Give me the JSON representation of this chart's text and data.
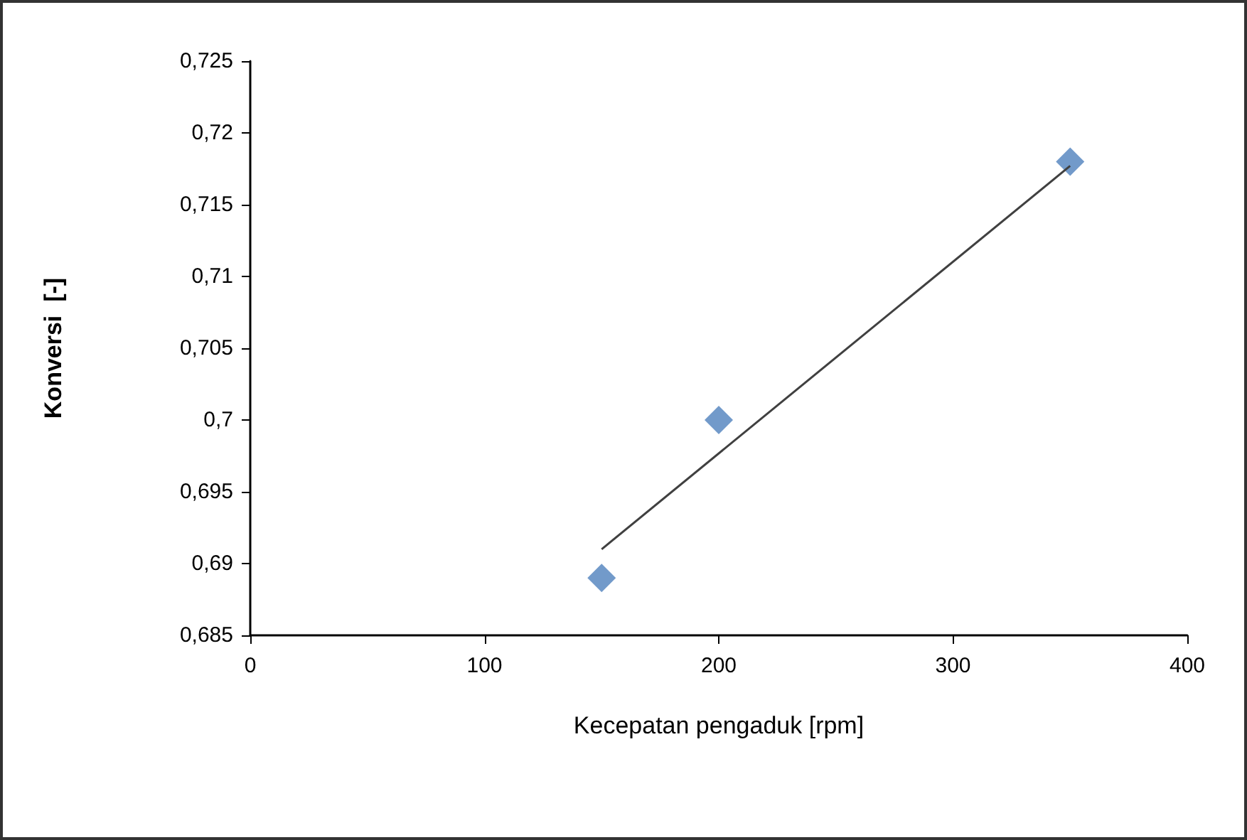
{
  "chart_data": {
    "type": "scatter",
    "xlabel": "Kecepatan pengaduk [rpm]",
    "ylabel": "Konversi  [-]",
    "x": [
      150,
      200,
      350
    ],
    "series": [
      {
        "color": "#4f81bd",
        "marker": "diamond",
        "values": [
          0.689,
          0.7,
          0.718
        ]
      },
      {
        "type": "line",
        "color": "#404040",
        "marker": "none",
        "x": [
          150,
          350
        ],
        "values": [
          0.691,
          0.7177
        ]
      }
    ],
    "xlim": [
      0,
      400
    ],
    "xticks": [
      0,
      100,
      200,
      300,
      400
    ],
    "ylim": [
      0.685,
      0.725
    ],
    "yticks": [
      {
        "value": 0.685,
        "label": "0,685"
      },
      {
        "value": 0.69,
        "label": "0,69"
      },
      {
        "value": 0.695,
        "label": "0,695"
      },
      {
        "value": 0.7,
        "label": "0,7"
      },
      {
        "value": 0.705,
        "label": "0,705"
      },
      {
        "value": 0.71,
        "label": "0,71"
      },
      {
        "value": 0.715,
        "label": "0,715"
      },
      {
        "value": 0.72,
        "label": "0,72"
      },
      {
        "value": 0.725,
        "label": "0,725"
      }
    ],
    "grid": false
  }
}
